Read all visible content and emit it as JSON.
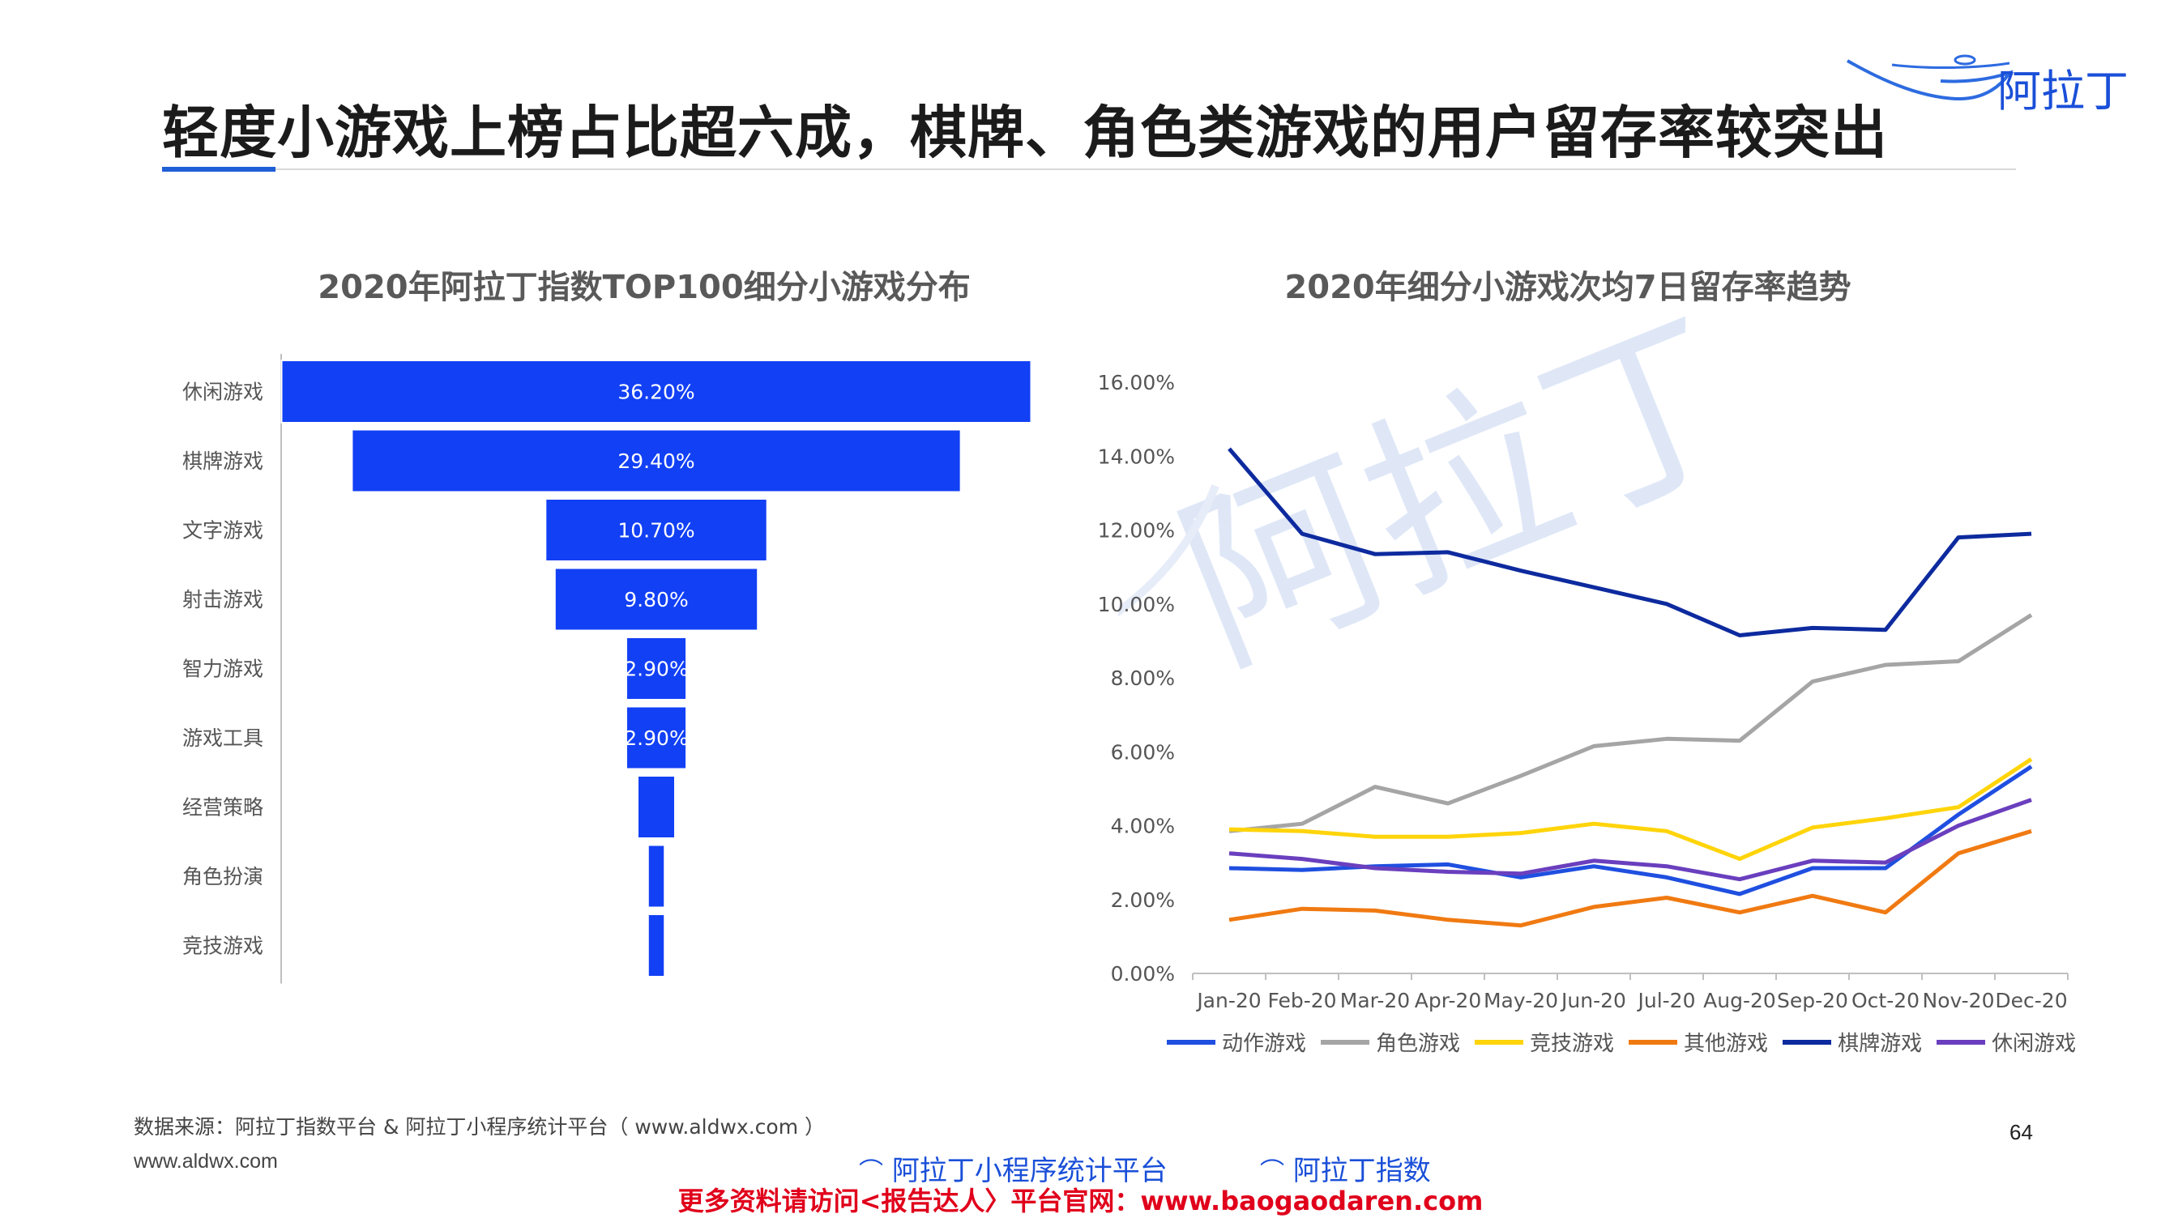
{
  "header": {
    "title": "轻度小游戏上榜占比超六成，棋牌、角色类游戏的用户留存率较突出",
    "logo_text": "阿拉丁"
  },
  "watermark_text": "阿拉丁",
  "colors": {
    "funnel_bar": "#1240f5",
    "accent": "#1f5fd6",
    "promo": "#e0001b"
  },
  "chart_data": [
    {
      "type": "bar",
      "orientation": "funnel",
      "title": "2020年阿拉丁指数TOP100细分小游戏分布",
      "categories": [
        "休闲游戏",
        "棋牌游戏",
        "文字游戏",
        "射击游戏",
        "智力游戏",
        "游戏工具",
        "经营策略",
        "角色扮演",
        "竞技游戏"
      ],
      "values": [
        36.2,
        29.4,
        10.7,
        9.8,
        2.9,
        2.9,
        1.8,
        0.8,
        0.8
      ],
      "labels": [
        "36.20%",
        "29.40%",
        "10.70%",
        "9.80%",
        "2.90%",
        "2.90%",
        "",
        "",
        ""
      ]
    },
    {
      "type": "line",
      "title": "2020年细分小游戏次均7日留存率趋势",
      "x": [
        "Jan-20",
        "Feb-20",
        "Mar-20",
        "Apr-20",
        "May-20",
        "Jun-20",
        "Jul-20",
        "Aug-20",
        "Sep-20",
        "Oct-20",
        "Nov-20",
        "Dec-20"
      ],
      "ylim": [
        0,
        16
      ],
      "yticks": [
        "0.00%",
        "2.00%",
        "4.00%",
        "6.00%",
        "8.00%",
        "10.00%",
        "12.00%",
        "14.00%",
        "16.00%"
      ],
      "legend": "bottom",
      "series": [
        {
          "name": "动作游戏",
          "color": "#1f4fe0",
          "values": [
            2.85,
            2.8,
            2.9,
            2.95,
            2.6,
            2.9,
            2.6,
            2.15,
            2.85,
            2.85,
            4.3,
            5.6
          ]
        },
        {
          "name": "角色游戏",
          "color": "#a5a5a5",
          "values": [
            3.85,
            4.05,
            5.05,
            4.6,
            5.35,
            6.15,
            6.35,
            6.3,
            7.9,
            8.35,
            8.45,
            9.7
          ]
        },
        {
          "name": "竞技游戏",
          "color": "#ffd40a",
          "values": [
            3.9,
            3.85,
            3.7,
            3.7,
            3.8,
            4.05,
            3.85,
            3.1,
            3.95,
            4.2,
            4.5,
            5.8
          ]
        },
        {
          "name": "其他游戏",
          "color": "#f07a12",
          "values": [
            1.45,
            1.75,
            1.7,
            1.45,
            1.3,
            1.8,
            2.05,
            1.65,
            2.1,
            1.65,
            3.25,
            3.85
          ]
        },
        {
          "name": "棋牌游戏",
          "color": "#0d2a9e",
          "values": [
            14.2,
            11.9,
            11.35,
            11.4,
            10.9,
            10.45,
            10.0,
            9.15,
            9.35,
            9.3,
            11.8,
            11.9
          ]
        },
        {
          "name": "休闲游戏",
          "color": "#6a3fbe",
          "values": [
            3.25,
            3.1,
            2.85,
            2.75,
            2.7,
            3.05,
            2.9,
            2.55,
            3.05,
            3.0,
            4.0,
            4.7
          ]
        }
      ]
    }
  ],
  "footer": {
    "source": "数据来源：阿拉丁指数平台 & 阿拉丁小程序统计平台（ www.aldwx.com ）",
    "site": "www.aldwx.com",
    "page_number": "64",
    "logo1": "阿拉丁小程序统计平台",
    "logo2": "阿拉丁指数",
    "promo": "更多资料请访问<报告达人〉平台官网：www.baogaodaren.com"
  }
}
